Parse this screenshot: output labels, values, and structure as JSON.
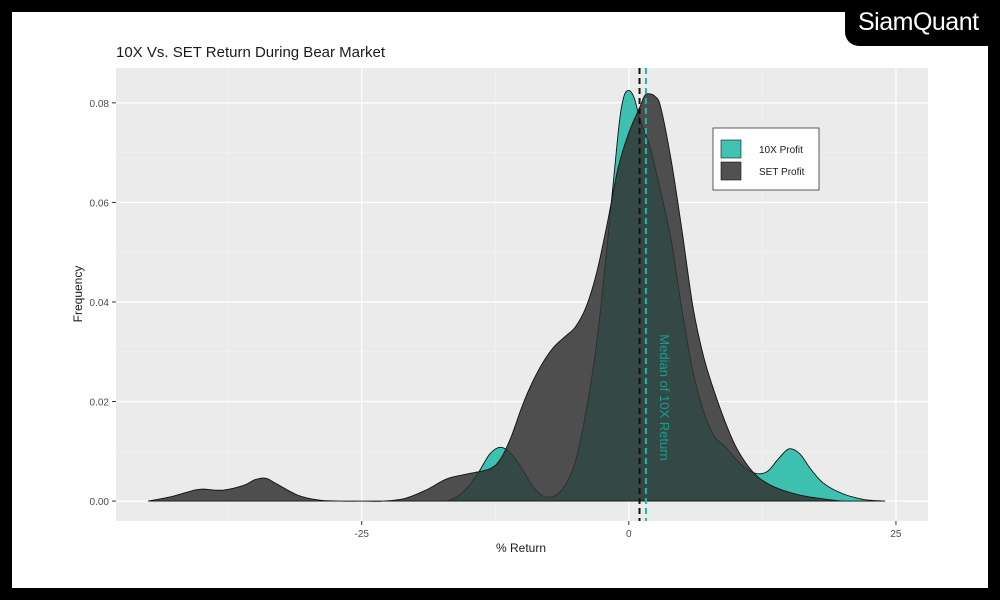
{
  "brand": "SiamQuant",
  "chart_data": {
    "type": "area",
    "title": "10X Vs. SET Return During Bear Market",
    "xlabel": "% Return",
    "ylabel": "Frequency",
    "xlim": [
      -48,
      28
    ],
    "ylim": [
      -0.004,
      0.087
    ],
    "x_ticks": [
      -25,
      0,
      25
    ],
    "x_tick_labels": [
      "-25",
      "0",
      "25"
    ],
    "y_ticks": [
      0,
      0.02,
      0.04,
      0.06,
      0.08
    ],
    "y_tick_labels": [
      "0.00",
      "0.02",
      "0.04",
      "0.06",
      "0.08"
    ],
    "grid": true,
    "legend_position": "top-right",
    "annotation": "Median of 10X Return",
    "series": [
      {
        "name": "10X Profit",
        "color": "#1fb8a6",
        "median": 1.6,
        "x": [
          -17,
          -16,
          -15,
          -14,
          -13,
          -12,
          -11,
          -10,
          -9,
          -8,
          -7,
          -6,
          -5,
          -4,
          -3,
          -2,
          -1,
          -0.5,
          0,
          0.5,
          1,
          1.5,
          2,
          3,
          4,
          5,
          6,
          7,
          8,
          9,
          10,
          11,
          12,
          13,
          14,
          15,
          16,
          17,
          18,
          19,
          20,
          21,
          22,
          23,
          24
        ],
        "values": [
          0,
          0.001,
          0.003,
          0.006,
          0.0095,
          0.0108,
          0.0095,
          0.0065,
          0.003,
          0.001,
          0.001,
          0.003,
          0.008,
          0.018,
          0.032,
          0.052,
          0.074,
          0.081,
          0.0825,
          0.081,
          0.077,
          0.074,
          0.071,
          0.062,
          0.052,
          0.038,
          0.026,
          0.018,
          0.013,
          0.011,
          0.0085,
          0.0065,
          0.0055,
          0.006,
          0.0085,
          0.0105,
          0.0095,
          0.0065,
          0.004,
          0.0025,
          0.0015,
          0.0008,
          0.0003,
          0.0001,
          0
        ]
      },
      {
        "name": "SET Profit",
        "color": "#333333",
        "median": 1.0,
        "x": [
          -45,
          -43,
          -41,
          -40,
          -38,
          -36,
          -35,
          -34,
          -33,
          -31,
          -29,
          -27,
          -25,
          -23,
          -21,
          -19,
          -17,
          -15,
          -13,
          -12,
          -11,
          -10,
          -9,
          -8,
          -7,
          -6,
          -5,
          -4,
          -3,
          -2,
          -1,
          0,
          1,
          1.5,
          2,
          2.5,
          3,
          4,
          5,
          6,
          7,
          8,
          9,
          10,
          11,
          12,
          13,
          14,
          15,
          16,
          17,
          18,
          19,
          20
        ],
        "values": [
          0,
          0.0008,
          0.002,
          0.0024,
          0.0022,
          0.0032,
          0.0043,
          0.0046,
          0.0035,
          0.0012,
          0.0002,
          0,
          0,
          0,
          0.0005,
          0.0022,
          0.0045,
          0.0055,
          0.0065,
          0.0085,
          0.013,
          0.019,
          0.024,
          0.028,
          0.031,
          0.033,
          0.035,
          0.039,
          0.046,
          0.056,
          0.067,
          0.074,
          0.079,
          0.0815,
          0.0818,
          0.0812,
          0.079,
          0.068,
          0.054,
          0.039,
          0.029,
          0.022,
          0.016,
          0.011,
          0.0075,
          0.005,
          0.0035,
          0.0025,
          0.0018,
          0.0012,
          0.0008,
          0.0005,
          0.0002,
          0
        ]
      }
    ]
  }
}
